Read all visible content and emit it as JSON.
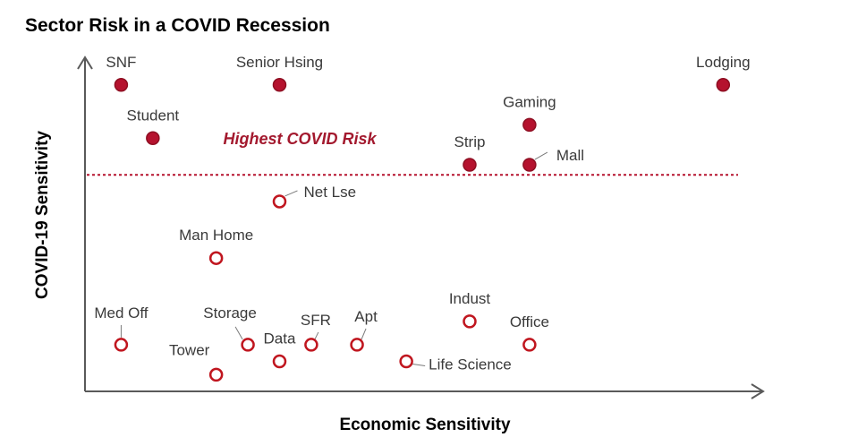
{
  "chart_data": {
    "type": "scatter",
    "title": "Sector Risk in a COVID Recession",
    "xlabel": "Economic Sensitivity",
    "ylabel": "COVID-19 Sensitivity",
    "xlim": [
      0,
      100
    ],
    "ylim": [
      0,
      100
    ],
    "grid": false,
    "threshold": {
      "y": 65,
      "label": "Highest COVID Risk"
    },
    "colors": {
      "high_risk": "#b5122e",
      "outline": "#c0161f",
      "threshold": "#b5122e",
      "annotation": "#a3192e"
    },
    "points": [
      {
        "label": "SNF",
        "x": 4.5,
        "y": 92,
        "high_risk": true
      },
      {
        "label": "Senior Hsing",
        "x": 27,
        "y": 92,
        "high_risk": true
      },
      {
        "label": "Lodging",
        "x": 90,
        "y": 92,
        "high_risk": true
      },
      {
        "label": "Student",
        "x": 9,
        "y": 76,
        "high_risk": true
      },
      {
        "label": "Gaming",
        "x": 62.5,
        "y": 80,
        "high_risk": true
      },
      {
        "label": "Strip",
        "x": 54,
        "y": 68,
        "high_risk": true
      },
      {
        "label": "Mall",
        "x": 62.5,
        "y": 68,
        "high_risk": true
      },
      {
        "label": "Net Lse",
        "x": 27,
        "y": 57,
        "high_risk": false
      },
      {
        "label": "Man Home",
        "x": 18,
        "y": 40,
        "high_risk": false
      },
      {
        "label": "Med Off",
        "x": 4.5,
        "y": 14,
        "high_risk": false
      },
      {
        "label": "Storage",
        "x": 22.5,
        "y": 14,
        "high_risk": false
      },
      {
        "label": "Tower",
        "x": 18,
        "y": 5,
        "high_risk": false
      },
      {
        "label": "Data",
        "x": 27,
        "y": 9,
        "high_risk": false
      },
      {
        "label": "SFR",
        "x": 31.5,
        "y": 14,
        "high_risk": false
      },
      {
        "label": "Apt",
        "x": 38,
        "y": 14,
        "high_risk": false
      },
      {
        "label": "Life Science",
        "x": 45,
        "y": 9,
        "high_risk": false
      },
      {
        "label": "Indust",
        "x": 54,
        "y": 21,
        "high_risk": false
      },
      {
        "label": "Office",
        "x": 62.5,
        "y": 14,
        "high_risk": false
      }
    ]
  }
}
